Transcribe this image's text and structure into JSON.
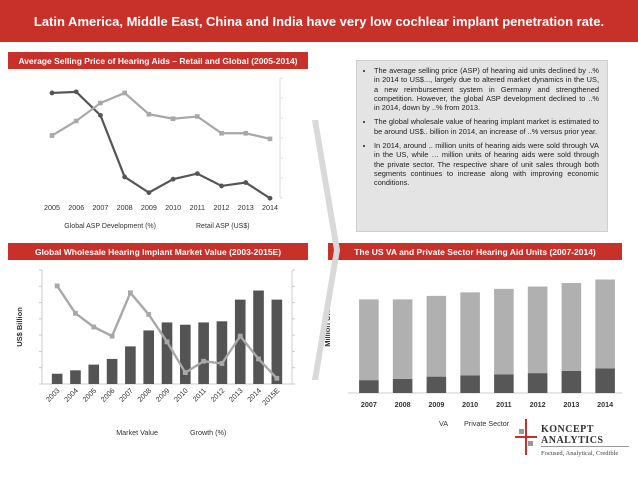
{
  "header": {
    "title": "Latin America, Middle East, China and India have very low cochlear implant penetration rate."
  },
  "panel1": {
    "title": "Average Selling Price of Hearing Aids – Retail and Global (2005-2014)"
  },
  "panel2": {
    "title": "Global Wholesale Hearing Implant Market Value (2003-2015E)"
  },
  "panel3": {
    "title": "The US VA and Private Sector Hearing Aid Units (2007-2014)"
  },
  "bullets": [
    "The average selling price (ASP) of hearing aid units declined by ..% in 2014 to US$..., largely due to altered market dynamics in the US, a new reimbursement system in Germany and strengthened competition. However, the global ASP development declined to ..% in 2014, down by ..% from 2013.",
    "The global wholesale value of hearing implant market is estimated to be around US$.. billion in 2014, an increase of ..% versus prior year.",
    "In 2014, around .. million units of hearing aids were sold through VA in the US, while … million units of hearing aids were sold through the private sector. The respective share of unit sales through both segments continues to increase along with improving economic conditions."
  ],
  "logo": {
    "name_line1": "KONCEPT",
    "name_line2": "ANALYTICS",
    "tagline": "Focused, Analytical, Credible"
  },
  "colors": {
    "accent": "#c8312a",
    "dark_series": "#555555",
    "light_series": "#a8a8a8",
    "bar_light": "#b0b0b0"
  },
  "chart_data": [
    {
      "type": "line",
      "title": "",
      "x": [
        "2005",
        "2006",
        "2007",
        "2008",
        "2009",
        "2010",
        "2011",
        "2012",
        "2013",
        "2014"
      ],
      "ylim": [
        0,
        100
      ],
      "grid": false,
      "legend_position": "bottom",
      "series": [
        {
          "name": "Global ASP Development (%)",
          "values": [
            92,
            93,
            72,
            17,
            3,
            15,
            20,
            9,
            12,
            -2
          ]
        },
        {
          "name": "Retail ASP (US$)",
          "values": [
            54,
            67,
            83,
            92,
            73,
            69,
            71,
            56,
            56,
            51
          ]
        }
      ]
    },
    {
      "type": "bar",
      "title": "",
      "ylabel": "US$ Billion",
      "categories": [
        "2003",
        "2004",
        "2005",
        "2006",
        "2007",
        "2008",
        "2009",
        "2010",
        "2011",
        "2012",
        "2013",
        "2014",
        "2015E"
      ],
      "ylim": [
        0,
        100
      ],
      "grid": false,
      "legend_position": "bottom",
      "series": [
        {
          "name": "Market Value",
          "values": [
            9,
            12,
            17,
            22,
            33,
            47,
            54,
            52,
            54,
            55,
            74,
            82,
            74
          ]
        },
        {
          "name": "Growth (%)",
          "values": [
            86,
            62,
            50,
            42,
            80,
            61,
            37,
            10,
            20,
            18,
            42,
            22,
            5
          ]
        }
      ]
    },
    {
      "type": "bar",
      "title": "",
      "ylabel": "Million Units",
      "categories": [
        "2007",
        "2008",
        "2009",
        "2010",
        "2011",
        "2012",
        "2013",
        "2014"
      ],
      "ylim": [
        0,
        100
      ],
      "grid": false,
      "stacked": true,
      "legend_position": "bottom",
      "series": [
        {
          "name": "VA",
          "values": [
            11,
            12,
            14,
            15,
            16,
            17,
            19,
            21
          ]
        },
        {
          "name": "Private Sector",
          "values": [
            69,
            68,
            69,
            71,
            73,
            74,
            75,
            76
          ]
        }
      ]
    }
  ]
}
